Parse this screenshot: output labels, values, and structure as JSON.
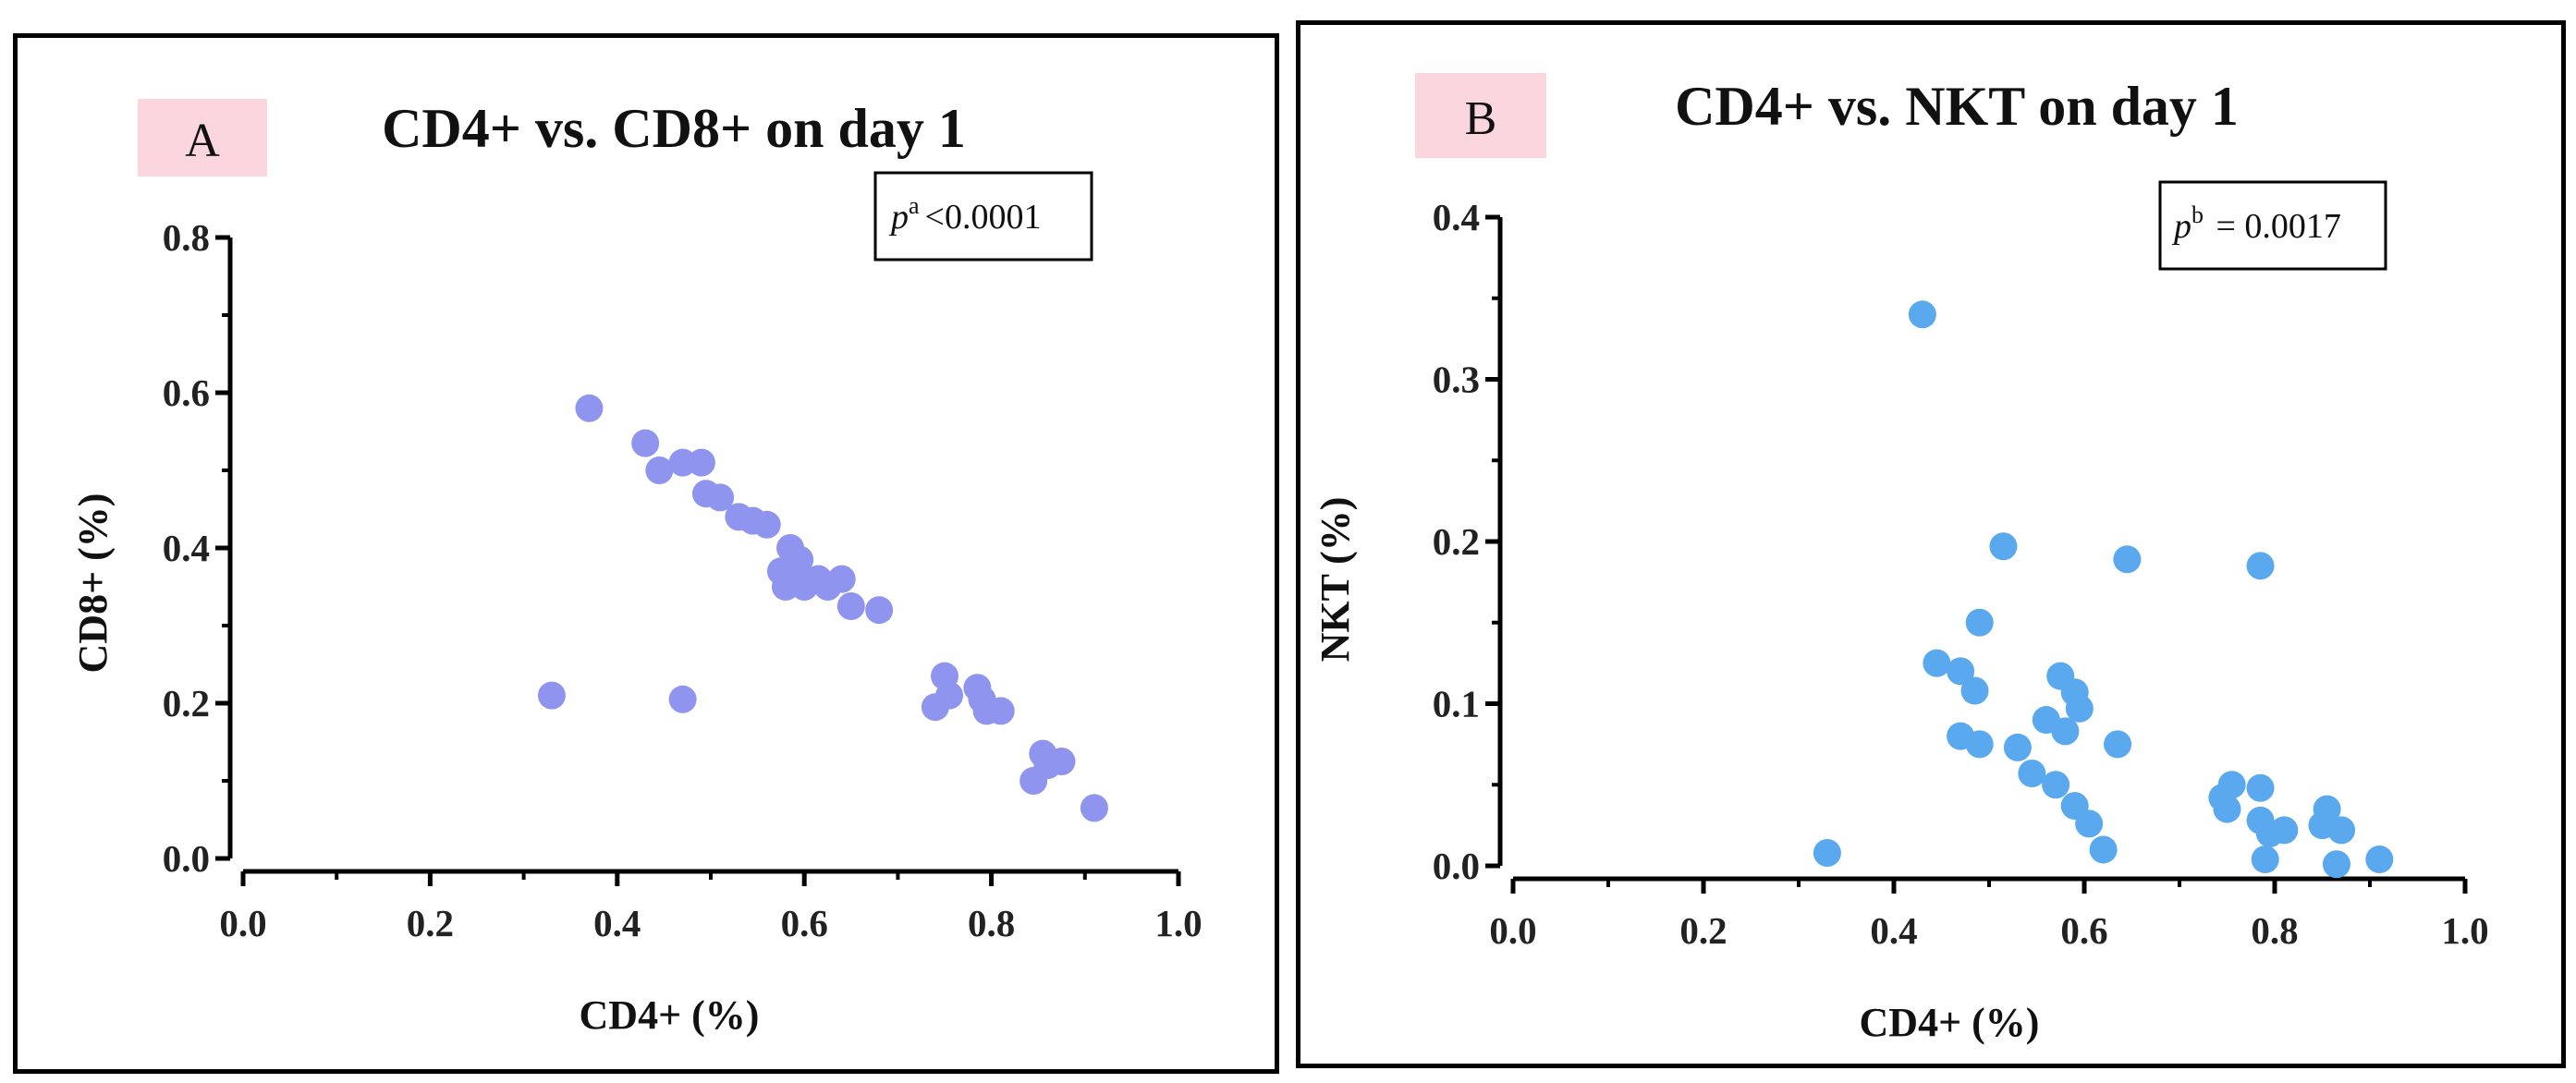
{
  "chart_data": [
    {
      "type": "scatter",
      "panel_label": "A",
      "title": "CD4+ vs. CD8+ on day 1",
      "xlabel": "CD4+ (%)",
      "ylabel": "CD8+ (%)",
      "xlim": [
        0.0,
        1.0
      ],
      "ylim": [
        0.0,
        0.8
      ],
      "xticks": [
        "0.0",
        "0.2",
        "0.4",
        "0.6",
        "0.8",
        "1.0"
      ],
      "yticks": [
        "0.0",
        "0.2",
        "0.4",
        "0.6",
        "0.8"
      ],
      "xtick_values": [
        0.0,
        0.2,
        0.4,
        0.6,
        0.8,
        1.0
      ],
      "ytick_values": [
        0.0,
        0.2,
        0.4,
        0.6,
        0.8
      ],
      "p_value": {
        "prefix": "p",
        "superscript": "a",
        "text": "<0.0001"
      },
      "marker_color": "#8f94ef",
      "points": [
        {
          "x": 0.33,
          "y": 0.21
        },
        {
          "x": 0.37,
          "y": 0.58
        },
        {
          "x": 0.43,
          "y": 0.535
        },
        {
          "x": 0.445,
          "y": 0.5
        },
        {
          "x": 0.47,
          "y": 0.51
        },
        {
          "x": 0.47,
          "y": 0.205
        },
        {
          "x": 0.49,
          "y": 0.51
        },
        {
          "x": 0.495,
          "y": 0.47
        },
        {
          "x": 0.51,
          "y": 0.465
        },
        {
          "x": 0.53,
          "y": 0.44
        },
        {
          "x": 0.545,
          "y": 0.435
        },
        {
          "x": 0.56,
          "y": 0.43
        },
        {
          "x": 0.575,
          "y": 0.37
        },
        {
          "x": 0.58,
          "y": 0.35
        },
        {
          "x": 0.585,
          "y": 0.4
        },
        {
          "x": 0.59,
          "y": 0.37
        },
        {
          "x": 0.595,
          "y": 0.385
        },
        {
          "x": 0.6,
          "y": 0.35
        },
        {
          "x": 0.615,
          "y": 0.36
        },
        {
          "x": 0.625,
          "y": 0.35
        },
        {
          "x": 0.64,
          "y": 0.36
        },
        {
          "x": 0.65,
          "y": 0.325
        },
        {
          "x": 0.68,
          "y": 0.32
        },
        {
          "x": 0.74,
          "y": 0.195
        },
        {
          "x": 0.75,
          "y": 0.235
        },
        {
          "x": 0.755,
          "y": 0.21
        },
        {
          "x": 0.785,
          "y": 0.22
        },
        {
          "x": 0.79,
          "y": 0.205
        },
        {
          "x": 0.795,
          "y": 0.19
        },
        {
          "x": 0.81,
          "y": 0.19
        },
        {
          "x": 0.845,
          "y": 0.1
        },
        {
          "x": 0.855,
          "y": 0.135
        },
        {
          "x": 0.86,
          "y": 0.12
        },
        {
          "x": 0.875,
          "y": 0.125
        },
        {
          "x": 0.91,
          "y": 0.065
        }
      ]
    },
    {
      "type": "scatter",
      "panel_label": "B",
      "title": "CD4+ vs. NKT on day 1",
      "xlabel": "CD4+ (%)",
      "ylabel": "NKT (%)",
      "xlim": [
        0.0,
        1.0
      ],
      "ylim": [
        0.0,
        0.4
      ],
      "xticks": [
        "0.0",
        "0.2",
        "0.4",
        "0.6",
        "0.8",
        "1.0"
      ],
      "yticks": [
        "0.0",
        "0.1",
        "0.2",
        "0.3",
        "0.4"
      ],
      "xtick_values": [
        0.0,
        0.2,
        0.4,
        0.6,
        0.8,
        1.0
      ],
      "ytick_values": [
        0.0,
        0.1,
        0.2,
        0.3,
        0.4
      ],
      "p_value": {
        "prefix": "p",
        "superscript": "b",
        "text": " = 0.0017"
      },
      "marker_color": "#5aa8ee",
      "points": [
        {
          "x": 0.33,
          "y": 0.008
        },
        {
          "x": 0.43,
          "y": 0.34
        },
        {
          "x": 0.445,
          "y": 0.125
        },
        {
          "x": 0.47,
          "y": 0.12
        },
        {
          "x": 0.47,
          "y": 0.08
        },
        {
          "x": 0.485,
          "y": 0.108
        },
        {
          "x": 0.49,
          "y": 0.075
        },
        {
          "x": 0.49,
          "y": 0.15
        },
        {
          "x": 0.515,
          "y": 0.197
        },
        {
          "x": 0.53,
          "y": 0.073
        },
        {
          "x": 0.545,
          "y": 0.057
        },
        {
          "x": 0.56,
          "y": 0.09
        },
        {
          "x": 0.57,
          "y": 0.05
        },
        {
          "x": 0.575,
          "y": 0.117
        },
        {
          "x": 0.58,
          "y": 0.083
        },
        {
          "x": 0.59,
          "y": 0.107
        },
        {
          "x": 0.59,
          "y": 0.037
        },
        {
          "x": 0.595,
          "y": 0.097
        },
        {
          "x": 0.605,
          "y": 0.026
        },
        {
          "x": 0.62,
          "y": 0.01
        },
        {
          "x": 0.635,
          "y": 0.075
        },
        {
          "x": 0.645,
          "y": 0.189
        },
        {
          "x": 0.745,
          "y": 0.042
        },
        {
          "x": 0.75,
          "y": 0.035
        },
        {
          "x": 0.755,
          "y": 0.05
        },
        {
          "x": 0.785,
          "y": 0.185
        },
        {
          "x": 0.785,
          "y": 0.048
        },
        {
          "x": 0.785,
          "y": 0.028
        },
        {
          "x": 0.79,
          "y": 0.004
        },
        {
          "x": 0.795,
          "y": 0.02
        },
        {
          "x": 0.81,
          "y": 0.022
        },
        {
          "x": 0.85,
          "y": 0.025
        },
        {
          "x": 0.855,
          "y": 0.035
        },
        {
          "x": 0.865,
          "y": 0.001
        },
        {
          "x": 0.87,
          "y": 0.022
        },
        {
          "x": 0.91,
          "y": 0.004
        }
      ]
    }
  ]
}
